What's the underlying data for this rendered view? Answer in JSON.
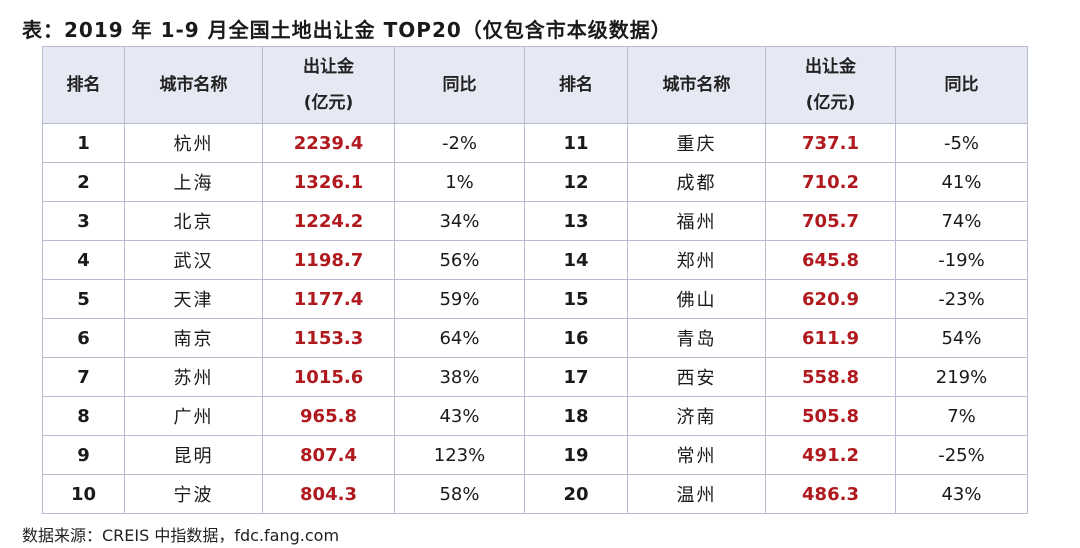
{
  "title": "表：2019 年 1-9 月全国土地出让金 TOP20（仅包含市本级数据）",
  "headers": {
    "rank": "排名",
    "city": "城市名称",
    "amount_line1": "出让金",
    "amount_line2": "(亿元)",
    "yoy": "同比"
  },
  "rows": [
    {
      "l": {
        "rank": "1",
        "city": "杭州",
        "amount": "2239.4",
        "yoy": "-2%"
      },
      "r": {
        "rank": "11",
        "city": "重庆",
        "amount": "737.1",
        "yoy": "-5%"
      }
    },
    {
      "l": {
        "rank": "2",
        "city": "上海",
        "amount": "1326.1",
        "yoy": "1%"
      },
      "r": {
        "rank": "12",
        "city": "成都",
        "amount": "710.2",
        "yoy": "41%"
      }
    },
    {
      "l": {
        "rank": "3",
        "city": "北京",
        "amount": "1224.2",
        "yoy": "34%"
      },
      "r": {
        "rank": "13",
        "city": "福州",
        "amount": "705.7",
        "yoy": "74%"
      }
    },
    {
      "l": {
        "rank": "4",
        "city": "武汉",
        "amount": "1198.7",
        "yoy": "56%"
      },
      "r": {
        "rank": "14",
        "city": "郑州",
        "amount": "645.8",
        "yoy": "-19%"
      }
    },
    {
      "l": {
        "rank": "5",
        "city": "天津",
        "amount": "1177.4",
        "yoy": "59%"
      },
      "r": {
        "rank": "15",
        "city": "佛山",
        "amount": "620.9",
        "yoy": "-23%"
      }
    },
    {
      "l": {
        "rank": "6",
        "city": "南京",
        "amount": "1153.3",
        "yoy": "64%"
      },
      "r": {
        "rank": "16",
        "city": "青岛",
        "amount": "611.9",
        "yoy": "54%"
      }
    },
    {
      "l": {
        "rank": "7",
        "city": "苏州",
        "amount": "1015.6",
        "yoy": "38%"
      },
      "r": {
        "rank": "17",
        "city": "西安",
        "amount": "558.8",
        "yoy": "219%"
      }
    },
    {
      "l": {
        "rank": "8",
        "city": "广州",
        "amount": "965.8",
        "yoy": "43%"
      },
      "r": {
        "rank": "18",
        "city": "济南",
        "amount": "505.8",
        "yoy": "7%"
      }
    },
    {
      "l": {
        "rank": "9",
        "city": "昆明",
        "amount": "807.4",
        "yoy": "123%"
      },
      "r": {
        "rank": "19",
        "city": "常州",
        "amount": "491.2",
        "yoy": "-25%"
      }
    },
    {
      "l": {
        "rank": "10",
        "city": "宁波",
        "amount": "804.3",
        "yoy": "58%"
      },
      "r": {
        "rank": "20",
        "city": "温州",
        "amount": "486.3",
        "yoy": "43%"
      }
    }
  ],
  "source": "数据来源：CREIS 中指数据，fdc.fang.com",
  "colors": {
    "header_bg": "#e6e8f4",
    "border": "#b9bcd0",
    "amount_text": "#b01a1f"
  }
}
